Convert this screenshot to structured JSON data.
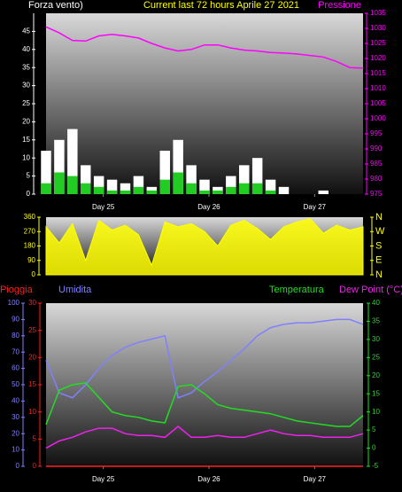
{
  "chart_data": [
    {
      "type": "combo",
      "title": "Current last 72 hours Aprile 27 2021",
      "y_label": "Forza vento)",
      "x": [
        0,
        3,
        6,
        9,
        12,
        15,
        18,
        21,
        24,
        27,
        30,
        33,
        36,
        39,
        42,
        45,
        48,
        51,
        54,
        57,
        60,
        63,
        66,
        69,
        72
      ],
      "xlim": [
        0,
        72
      ],
      "xticks": [
        {
          "value": 13,
          "label": "Day 25"
        },
        {
          "value": 37,
          "label": "Day 26"
        },
        {
          "value": 61,
          "label": "Day 27"
        }
      ],
      "ylim": [
        0,
        50
      ],
      "yticks": [
        0,
        5,
        10,
        15,
        20,
        25,
        30,
        35,
        40,
        45
      ],
      "y2lim": [
        975,
        1035
      ],
      "y2ticks": [
        975,
        980,
        985,
        990,
        995,
        1000,
        1005,
        1010,
        1015,
        1020,
        1025,
        1030,
        1035
      ],
      "series": [
        {
          "type": "bar",
          "color": "#ffffff",
          "values": [
            12,
            15,
            18,
            8,
            5,
            4,
            3,
            5,
            2,
            12,
            15,
            8,
            4,
            2,
            5,
            8,
            10,
            4,
            2,
            0,
            0,
            1,
            0,
            0,
            0
          ]
        },
        {
          "type": "bar",
          "color": "#22cc22",
          "values": [
            3,
            6,
            5,
            3,
            2,
            1,
            1,
            2,
            1,
            4,
            6,
            3,
            1,
            1,
            2,
            3,
            3,
            1,
            0,
            0,
            0,
            0,
            0,
            0,
            0
          ]
        },
        {
          "type": "line",
          "name": "Pressione",
          "axis": "y2",
          "color": "#ff00ff",
          "values": [
            1030.5,
            1028.5,
            1026,
            1025.8,
            1027.5,
            1028,
            1027.5,
            1026.8,
            1025,
            1023.5,
            1022.5,
            1023,
            1024.5,
            1024.5,
            1023.5,
            1022.8,
            1022.5,
            1022,
            1021.8,
            1021.5,
            1021,
            1020.5,
            1019,
            1017,
            1016.8
          ]
        }
      ]
    },
    {
      "type": "area",
      "x": [
        0,
        3,
        6,
        9,
        12,
        15,
        18,
        21,
        24,
        27,
        30,
        33,
        36,
        39,
        42,
        45,
        48,
        51,
        54,
        57,
        60,
        63,
        66,
        69,
        72
      ],
      "xlim": [
        0,
        72
      ],
      "ylim": [
        0,
        360
      ],
      "yticks": [
        0,
        90,
        180,
        270,
        360
      ],
      "y2lim": [
        0,
        360
      ],
      "y2ticks": [
        {
          "value": 0,
          "label": "N"
        },
        {
          "value": 90,
          "label": "E"
        },
        {
          "value": 180,
          "label": "S"
        },
        {
          "value": 270,
          "label": "W"
        },
        {
          "value": 360,
          "label": "N"
        }
      ],
      "series": [
        {
          "color": "#ffff00",
          "values": [
            300,
            200,
            320,
            90,
            340,
            280,
            310,
            250,
            60,
            330,
            300,
            320,
            270,
            180,
            310,
            340,
            290,
            220,
            300,
            330,
            350,
            260,
            310,
            280,
            300
          ]
        }
      ]
    },
    {
      "type": "line",
      "x": [
        0,
        3,
        6,
        9,
        12,
        15,
        18,
        21,
        24,
        27,
        30,
        33,
        36,
        39,
        42,
        45,
        48,
        51,
        54,
        57,
        60,
        63,
        66,
        69,
        72
      ],
      "xlim": [
        0,
        72
      ],
      "xticks": [
        {
          "value": 13,
          "label": "Day 25"
        },
        {
          "value": 37,
          "label": "Day 26"
        },
        {
          "value": 61,
          "label": "Day 27"
        }
      ],
      "ylim": [
        0,
        100
      ],
      "yticks": [
        0,
        10,
        20,
        30,
        40,
        50,
        60,
        70,
        80,
        90,
        100
      ],
      "y3lim": [
        0,
        30
      ],
      "y3ticks": [
        0,
        5,
        10,
        15,
        20,
        25,
        30
      ],
      "y2lim": [
        -5,
        40
      ],
      "y2ticks": [
        -5,
        0,
        5,
        10,
        15,
        20,
        25,
        30,
        35,
        40
      ],
      "series": [
        {
          "name": "Pioggia",
          "axis": "y3",
          "color": "#ff2020",
          "values": [
            0,
            0,
            0,
            0,
            0,
            0,
            0,
            0,
            0,
            0,
            0,
            0,
            0,
            0,
            0,
            0,
            0,
            0,
            0,
            0,
            0,
            0,
            0,
            0,
            0
          ]
        },
        {
          "name": "Umidita",
          "color": "#8080ff",
          "values": [
            65,
            45,
            42,
            50,
            60,
            68,
            73,
            76,
            78,
            80,
            42,
            45,
            52,
            58,
            65,
            72,
            80,
            85,
            87,
            88,
            88,
            89,
            90,
            90,
            87
          ]
        },
        {
          "name": "Temperatura",
          "axis": "y2",
          "color": "#22dd22",
          "values": [
            6.5,
            16,
            17.5,
            18,
            14,
            10,
            9,
            8.5,
            7.5,
            7,
            17,
            17.5,
            15,
            12,
            11,
            10.5,
            10,
            9.5,
            8.5,
            7.5,
            7,
            6.5,
            6,
            6,
            9
          ]
        },
        {
          "name": "Dew Point (°C)",
          "axis": "y2",
          "color": "#ee22ee",
          "values": [
            0,
            2,
            3,
            4.5,
            5.5,
            5.5,
            4,
            3.5,
            3.5,
            3,
            6,
            3,
            3,
            3.5,
            3,
            3,
            4,
            5,
            4,
            3.5,
            3.5,
            3,
            3,
            3,
            4
          ]
        }
      ]
    }
  ]
}
